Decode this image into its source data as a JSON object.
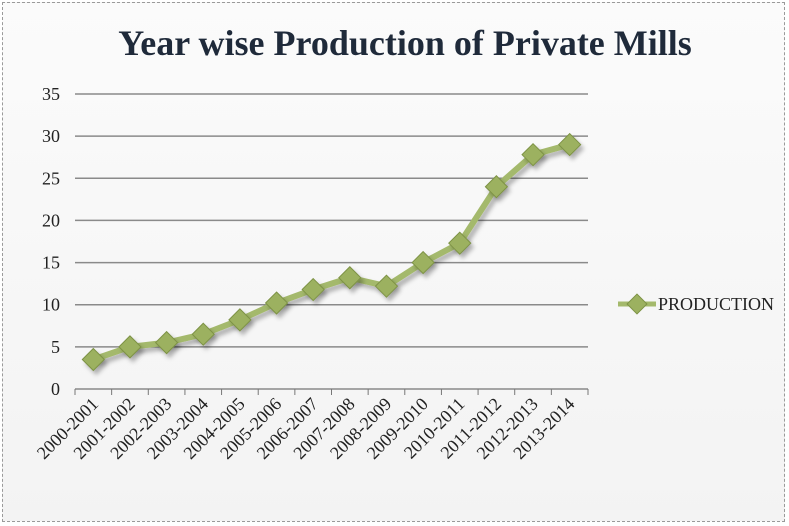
{
  "chart_data": {
    "type": "line",
    "title": "Year wise Production of Private Mills",
    "xlabel": "",
    "ylabel": "",
    "categories": [
      "2000-2001",
      "2001-2002",
      "2002-2003",
      "2003-2004",
      "2004-2005",
      "2005-2006",
      "2006-2007",
      "2007-2008",
      "2008-2009",
      "2009-2010",
      "2010-2011",
      "2011-2012",
      "2012-2013",
      "2013-2014"
    ],
    "series": [
      {
        "name": "PRODUCTION",
        "values": [
          3.5,
          5.0,
          5.5,
          6.5,
          8.2,
          10.2,
          11.8,
          13.2,
          12.2,
          15.0,
          17.3,
          24.0,
          27.8,
          29.0
        ]
      }
    ],
    "ylim": [
      0,
      35
    ],
    "yticks": [
      "0",
      "5",
      "10",
      "15",
      "20",
      "25",
      "30",
      "35"
    ],
    "grid": "horizontal",
    "legend": "right",
    "colors": {
      "line": "#a4b96c",
      "marker": "#9cb160",
      "marker_edge": "#7d9245",
      "grid": "#8a8a8a",
      "axis": "#777777"
    }
  }
}
